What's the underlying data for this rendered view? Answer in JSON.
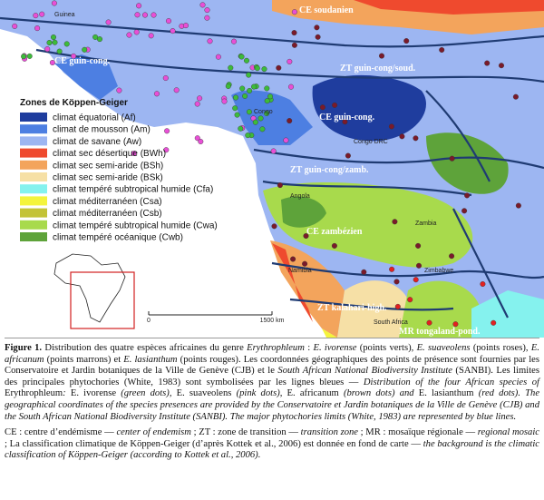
{
  "map": {
    "zone_labels": [
      "CE soudanien",
      "CE guin-cong.",
      "ZT guin-cong/soud.",
      "CE guin-cong.",
      "ZT guin-cong/zamb.",
      "CE zambézien",
      "ZT kalahari-high.",
      "MR tongaland-pond."
    ],
    "country_labels": [
      "Guinea",
      "Congo",
      "Congo DRC",
      "Angola",
      "Zambia",
      "Zimbabwe",
      "Namibia",
      "South Africa"
    ],
    "scale": {
      "start": "0",
      "end": "1500 km"
    }
  },
  "legend": {
    "title": "Zones de Köppen-Geiger",
    "items": [
      {
        "label": "climat équatorial (Af)",
        "color": "#1f3d9e"
      },
      {
        "label": "climat de mousson (Am)",
        "color": "#4d7fe2"
      },
      {
        "label": "climat de savane (Aw)",
        "color": "#9db6f2"
      },
      {
        "label": "climat sec désertique (BWh)",
        "color": "#ef4a2e"
      },
      {
        "label": "climat sec semi-aride (BSh)",
        "color": "#f3a45c"
      },
      {
        "label": "climat sec semi-aride (BSk)",
        "color": "#f6e0a6"
      },
      {
        "label": "climat tempéré subtropical humide (Cfa)",
        "color": "#85f2ee"
      },
      {
        "label": "climat méditerranéen (Csa)",
        "color": "#f4f43c"
      },
      {
        "label": "climat méditerranéen (Csb)",
        "color": "#c3c336"
      },
      {
        "label": "climat tempéré subtropical humide (Cwa)",
        "color": "#a8da4c"
      },
      {
        "label": "climat tempéré océanique (Cwb)",
        "color": "#5ea33a"
      }
    ]
  },
  "caption": {
    "paragraphs": [
      [
        {
          "text": "Figure 1.",
          "bold": true
        },
        {
          "text": " Distribution des quatre espèces africaines du genre "
        },
        {
          "text": "Erythrophleum",
          "italic": true
        },
        {
          "text": " : "
        },
        {
          "text": "E. ivorense",
          "italic": true
        },
        {
          "text": " (points verts), "
        },
        {
          "text": "E. suaveolens",
          "italic": true
        },
        {
          "text": " (points roses), "
        },
        {
          "text": "E. africanum",
          "italic": true
        },
        {
          "text": " (points marrons) et "
        },
        {
          "text": "E. lasianthum",
          "italic": true
        },
        {
          "text": " (points rouges). Les coordonnées géographiques des points de présence sont fournies par les Conservatoire et Jardin botaniques de la Ville de Genève (CJB) et le "
        },
        {
          "text": "South African National Biodiversity Institute",
          "italic": true
        },
        {
          "text": " (SANBI). Les limites des principales phytochories (White, 1983) sont symbolisées par les lignes bleues — "
        },
        {
          "text": "Distribution of the four African species of",
          "italic": true
        },
        {
          "text": " Erythrophleum"
        },
        {
          "text": ": ",
          "italic": true
        },
        {
          "text": "E. ivorense "
        },
        {
          "text": "(green dots), ",
          "italic": true
        },
        {
          "text": "E. suaveolens "
        },
        {
          "text": "(pink dots), ",
          "italic": true
        },
        {
          "text": "E. africanum "
        },
        {
          "text": "(brown dots) and ",
          "italic": true
        },
        {
          "text": "E. lasianthum "
        },
        {
          "text": "(red dots). The geographical coordinates of the species presences are provided by the Conservatoire et Jardin botaniques de la Ville de Genève (CJB) and the South African National Biodiversity Institute (SANBI). The major phytochories limits (White, 1983) are represented by blue lines.",
          "italic": true
        }
      ],
      [
        {
          "text": "CE : centre d’endémisme — "
        },
        {
          "text": "center of endemism",
          "italic": true
        },
        {
          "text": " ; ZT : zone de transition — "
        },
        {
          "text": "transition zone",
          "italic": true
        },
        {
          "text": " ; MR : mosaïque régionale — "
        },
        {
          "text": "regional mosaic",
          "italic": true
        },
        {
          "text": " ; La classification climatique de Köppen-Geiger (d’après Kottek et al., 2006) est donnée en fond de carte — "
        },
        {
          "text": "the background is the climatic classification of Köppen-Geiger (according to Kottek et al., 2006).",
          "italic": true
        }
      ]
    ]
  }
}
